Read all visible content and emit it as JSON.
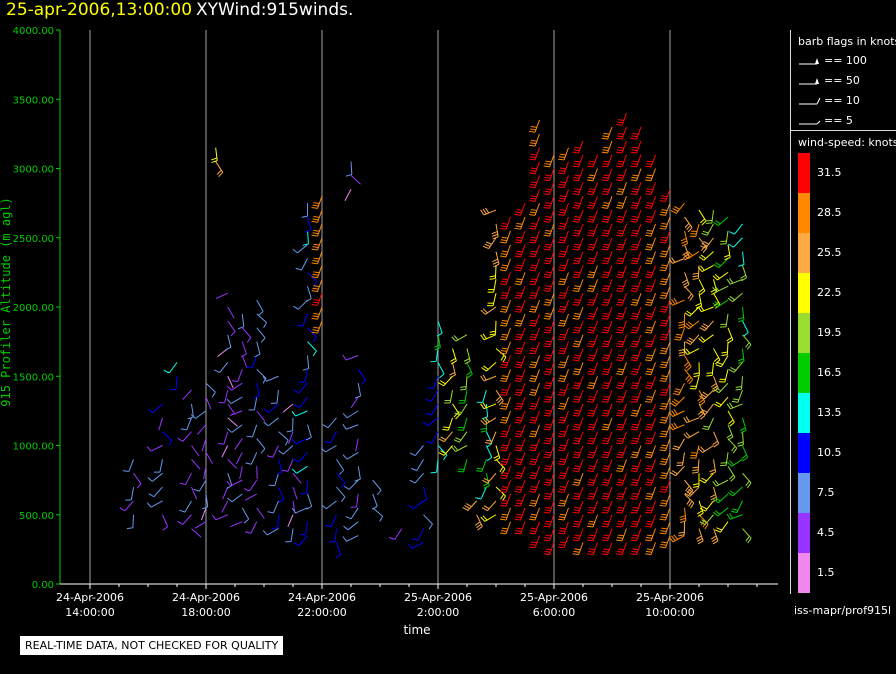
{
  "header": {
    "datetime": "25-apr-2006,13:00:00",
    "product": "XYWind:915winds."
  },
  "chart_data": {
    "type": "scatter",
    "marker": "wind-barb",
    "xlabel": "time",
    "ylabel": "915 Profiler Altitude (m agl)",
    "ylim": [
      0,
      4000
    ],
    "y_ticks": [
      "4000.00",
      "3500.00",
      "3000.00",
      "2500.00",
      "2000.00",
      "1500.00",
      "1000.00",
      "500.00",
      "0.00"
    ],
    "x_ticks": [
      {
        "date": "24-Apr-2006",
        "time": "14:00:00"
      },
      {
        "date": "24-Apr-2006",
        "time": "18:00:00"
      },
      {
        "date": "24-Apr-2006",
        "time": "22:00:00"
      },
      {
        "date": "25-Apr-2006",
        "time": "2:00:00"
      },
      {
        "date": "25-Apr-2006",
        "time": "6:00:00"
      },
      {
        "date": "25-Apr-2006",
        "time": "10:00:00"
      }
    ],
    "grid": "vertical",
    "profiles": [
      {
        "t": "24-Apr-2006 15:30",
        "bottom": 500,
        "top": 900,
        "speed": 8
      },
      {
        "t": "24-Apr-2006 16:30",
        "bottom": 500,
        "top": 1300,
        "speed": 7
      },
      {
        "t": "24-Apr-2006 17:00",
        "bottom": 1500,
        "top": 1650,
        "speed": 12
      },
      {
        "t": "24-Apr-2006 17:30",
        "bottom": 400,
        "top": 1400,
        "speed": 6
      },
      {
        "t": "24-Apr-2006 18:00",
        "bottom": 450,
        "top": 1500,
        "speed": 5
      },
      {
        "t": "24-Apr-2006 18:20",
        "bottom": 3050,
        "top": 3200,
        "speed": 22
      },
      {
        "t": "24-Apr-2006 18:45",
        "bottom": 500,
        "top": 2100,
        "speed": 5
      },
      {
        "t": "24-Apr-2006 19:15",
        "bottom": 450,
        "top": 2000,
        "speed": 6
      },
      {
        "t": "24-Apr-2006 19:45",
        "bottom": 450,
        "top": 2050,
        "speed": 7
      },
      {
        "t": "24-Apr-2006 20:30",
        "bottom": 400,
        "top": 1500,
        "speed": 8
      },
      {
        "t": "24-Apr-2006 21:00",
        "bottom": 400,
        "top": 1300,
        "speed": 5
      },
      {
        "t": "24-Apr-2006 21:30",
        "bottom": 350,
        "top": 2800,
        "speed": 10
      },
      {
        "t": "24-Apr-2006 22:00",
        "bottom": 1900,
        "top": 2850,
        "speed": 29
      },
      {
        "t": "24-Apr-2006 22:30",
        "bottom": 300,
        "top": 1200,
        "speed": 9
      },
      {
        "t": "24-Apr-2006 23:00",
        "bottom": 2850,
        "top": 3050,
        "speed": 5
      },
      {
        "t": "24-Apr-2006 23:15",
        "bottom": 350,
        "top": 1700,
        "speed": 7
      },
      {
        "t": "24-Apr-2006 23:45",
        "bottom": 550,
        "top": 800,
        "speed": 6
      },
      {
        "t": "25-Apr-2006 00:45",
        "bottom": 400,
        "top": 400,
        "speed": 8
      },
      {
        "t": "25-Apr-2006 01:30",
        "bottom": 300,
        "top": 1000,
        "speed": 9
      },
      {
        "t": "25-Apr-2006 02:00",
        "bottom": 900,
        "top": 1900,
        "speed": 14
      },
      {
        "t": "25-Apr-2006 02:30",
        "bottom": 1000,
        "top": 1700,
        "speed": 23
      },
      {
        "t": "25-Apr-2006 03:00",
        "bottom": 900,
        "top": 1800,
        "speed": 19
      },
      {
        "t": "25-Apr-2006 03:20",
        "bottom": 500,
        "top": 600,
        "speed": 24
      },
      {
        "t": "25-Apr-2006 03:40",
        "bottom": 700,
        "top": 1400,
        "speed": 15
      },
      {
        "t": "25-Apr-2006 04:00",
        "bottom": 500,
        "top": 2700,
        "speed": 24
      },
      {
        "t": "25-Apr-2006 04:30",
        "bottom": 450,
        "top": 2700,
        "speed": 30
      },
      {
        "t": "25-Apr-2006 05:00",
        "bottom": 450,
        "top": 2750,
        "speed": 31
      },
      {
        "t": "25-Apr-2006 05:30",
        "bottom": 350,
        "top": 3350,
        "speed": 31
      },
      {
        "t": "25-Apr-2006 06:00",
        "bottom": 300,
        "top": 3100,
        "speed": 31
      },
      {
        "t": "25-Apr-2006 06:30",
        "bottom": 350,
        "top": 3150,
        "speed": 31
      },
      {
        "t": "25-Apr-2006 07:00",
        "bottom": 300,
        "top": 3200,
        "speed": 31
      },
      {
        "t": "25-Apr-2006 07:30",
        "bottom": 300,
        "top": 3100,
        "speed": 31
      },
      {
        "t": "25-Apr-2006 08:00",
        "bottom": 300,
        "top": 3300,
        "speed": 31
      },
      {
        "t": "25-Apr-2006 08:30",
        "bottom": 300,
        "top": 3400,
        "speed": 31
      },
      {
        "t": "25-Apr-2006 09:00",
        "bottom": 300,
        "top": 3350,
        "speed": 31
      },
      {
        "t": "25-Apr-2006 09:30",
        "bottom": 300,
        "top": 3100,
        "speed": 30
      },
      {
        "t": "25-Apr-2006 10:00",
        "bottom": 350,
        "top": 2900,
        "speed": 29
      },
      {
        "t": "25-Apr-2006 10:30",
        "bottom": 350,
        "top": 2800,
        "speed": 27
      },
      {
        "t": "25-Apr-2006 11:00",
        "bottom": 400,
        "top": 2750,
        "speed": 25
      },
      {
        "t": "25-Apr-2006 11:30",
        "bottom": 400,
        "top": 2750,
        "speed": 23
      },
      {
        "t": "25-Apr-2006 12:00",
        "bottom": 450,
        "top": 2700,
        "speed": 20
      },
      {
        "t": "25-Apr-2006 12:30",
        "bottom": 400,
        "top": 2650,
        "speed": 17
      }
    ]
  },
  "legend": {
    "barb_title": "barb flags in knots",
    "barb_items": [
      "== 100",
      "== 50",
      "== 10",
      "== 5"
    ],
    "speed_title": "wind-speed: knots",
    "speed_scale": [
      {
        "label": "31.5",
        "color": "#ff0000"
      },
      {
        "label": "28.5",
        "color": "#ff8800"
      },
      {
        "label": "25.5",
        "color": "#ffaa44"
      },
      {
        "label": "22.5",
        "color": "#ffff00"
      },
      {
        "label": "19.5",
        "color": "#99dd33"
      },
      {
        "label": "16.5",
        "color": "#00cc00"
      },
      {
        "label": "13.5",
        "color": "#00ffee"
      },
      {
        "label": "10.5",
        "color": "#0000ff"
      },
      {
        "label": "7.5",
        "color": "#6699ee"
      },
      {
        "label": "4.5",
        "color": "#9933ff"
      },
      {
        "label": "1.5",
        "color": "#ee88ee"
      }
    ],
    "source": "iss-mapr/prof915l"
  },
  "footer": {
    "quality_note": "REAL-TIME DATA, NOT CHECKED FOR QUALITY"
  },
  "colors": {
    "axis": "#00cc00",
    "title_date": "#ffff00",
    "grid": "#cccccc"
  }
}
